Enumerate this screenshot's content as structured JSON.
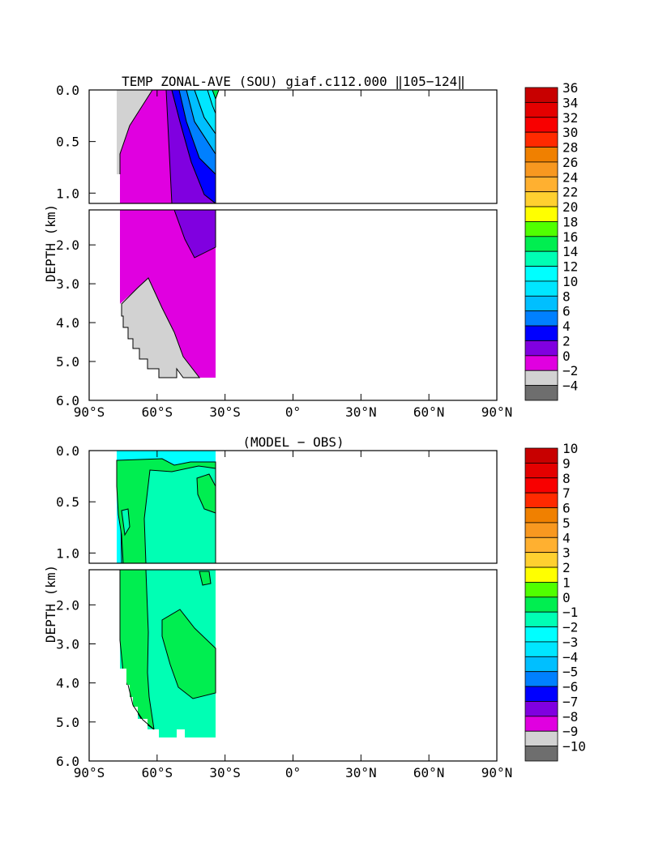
{
  "chart_data": [
    {
      "type": "contour",
      "title": "TEMP ZONAL-AVE (SOU) giaf.c112.000 ‖105−124‖",
      "ylabel": "DEPTH (km)",
      "x_ticks": [
        "90°S",
        "60°S",
        "30°S",
        "0°",
        "30°N",
        "60°N",
        "90°N"
      ],
      "xlim": [
        -90,
        90
      ],
      "upper_y_ticks": [
        "0.0",
        "0.5",
        "1.0"
      ],
      "lower_y_ticks": [
        "2.0",
        "3.0",
        "4.0",
        "5.0",
        "6.0"
      ],
      "ylim_km": [
        0,
        6
      ],
      "data_extent_lat": [
        -78,
        -34
      ],
      "colorbar_levels": [
        "36",
        "34",
        "32",
        "30",
        "28",
        "26",
        "24",
        "22",
        "20",
        "18",
        "16",
        "14",
        "12",
        "10",
        "8",
        "6",
        "4",
        "2",
        "0",
        "−2",
        "−4"
      ],
      "colorbar_colors": [
        "#c80000",
        "#e40000",
        "#f80000",
        "#ff2a00",
        "#f08000",
        "#f89820",
        "#ffb030",
        "#ffd030",
        "#ffff00",
        "#50ff00",
        "#00ee50",
        "#00ffb4",
        "#00ffff",
        "#00e6ff",
        "#00bfff",
        "#0080ff",
        "#0000ff",
        "#8000e0",
        "#e000e0",
        "#d2d2d2",
        "#6e6e6e"
      ]
    },
    {
      "type": "contour",
      "title": "(MODEL − OBS)",
      "ylabel": "DEPTH (km)",
      "x_ticks": [
        "90°S",
        "60°S",
        "30°S",
        "0°",
        "30°N",
        "60°N",
        "90°N"
      ],
      "xlim": [
        -90,
        90
      ],
      "upper_y_ticks": [
        "0.0",
        "0.5",
        "1.0"
      ],
      "lower_y_ticks": [
        "2.0",
        "3.0",
        "4.0",
        "5.0",
        "6.0"
      ],
      "ylim_km": [
        0,
        6
      ],
      "data_extent_lat": [
        -78,
        -34
      ],
      "colorbar_levels": [
        "10",
        "9",
        "8",
        "7",
        "6",
        "5",
        "4",
        "3",
        "2",
        "1",
        "0",
        "−1",
        "−2",
        "−3",
        "−4",
        "−5",
        "−6",
        "−7",
        "−8",
        "−9",
        "−10"
      ],
      "colorbar_colors": [
        "#c80000",
        "#e40000",
        "#f80000",
        "#ff2a00",
        "#f08000",
        "#f89820",
        "#ffb030",
        "#ffd030",
        "#ffff00",
        "#50ff00",
        "#00ee50",
        "#00ffb4",
        "#00ffff",
        "#00e6ff",
        "#00bfff",
        "#0080ff",
        "#0000ff",
        "#8000e0",
        "#e000e0",
        "#d2d2d2",
        "#6e6e6e"
      ]
    }
  ]
}
